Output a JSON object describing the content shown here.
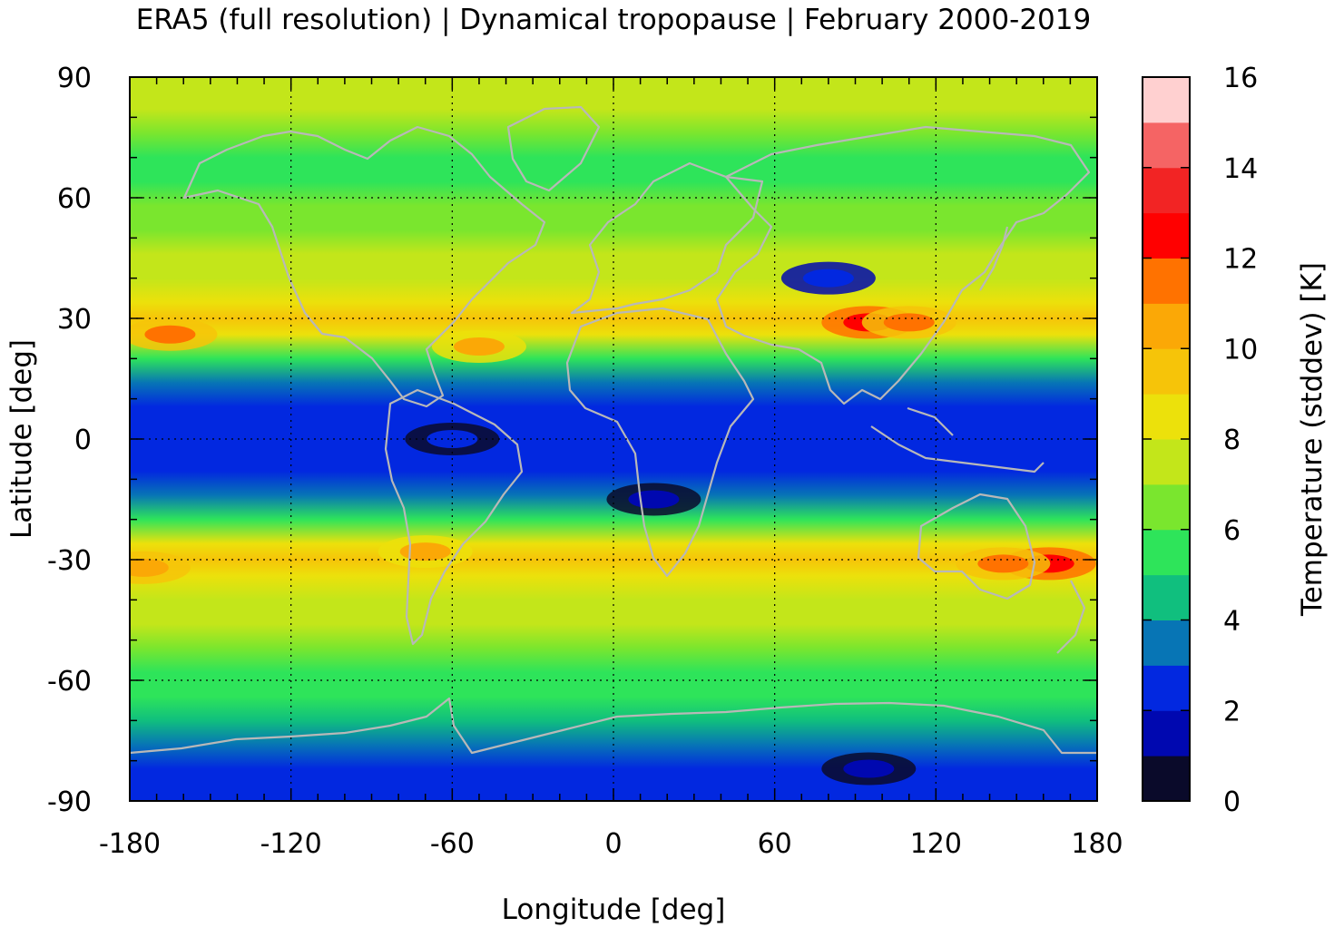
{
  "chart_data": {
    "type": "heatmap",
    "title": "ERA5 (full resolution) | Dynamical tropopause | February 2000-2019",
    "xlabel": "Longitude [deg]",
    "ylabel": "Latitude [deg]",
    "colorbar_label": "Temperature (stddev) [K]",
    "xlim": [
      -180,
      180
    ],
    "ylim": [
      -90,
      90
    ],
    "x_ticks": [
      -180,
      -120,
      -60,
      0,
      60,
      120,
      180
    ],
    "y_ticks": [
      -90,
      -60,
      -30,
      0,
      30,
      60,
      90
    ],
    "x_tick_labels": [
      "-180",
      "-120",
      "-60",
      "0",
      "60",
      "120",
      "180"
    ],
    "y_tick_labels": [
      "-90",
      "-60",
      "-30",
      "0",
      "30",
      "60",
      "90"
    ],
    "grid": true,
    "colorbar": {
      "range": [
        0,
        16
      ],
      "ticks": [
        0,
        2,
        4,
        6,
        8,
        10,
        12,
        14,
        16
      ],
      "tick_labels": [
        "0",
        "2",
        "4",
        "6",
        "8",
        "10",
        "12",
        "14",
        "16"
      ],
      "levels": [
        {
          "min": 0,
          "max": 1,
          "color": "#0a0a2a"
        },
        {
          "min": 1,
          "max": 2,
          "color": "#0008b0"
        },
        {
          "min": 2,
          "max": 3,
          "color": "#0228e0"
        },
        {
          "min": 3,
          "max": 4,
          "color": "#0775b5"
        },
        {
          "min": 4,
          "max": 5,
          "color": "#10bf7e"
        },
        {
          "min": 5,
          "max": 6,
          "color": "#2ee45a"
        },
        {
          "min": 6,
          "max": 7,
          "color": "#7ae62e"
        },
        {
          "min": 7,
          "max": 8,
          "color": "#c3e61a"
        },
        {
          "min": 8,
          "max": 9,
          "color": "#ece10b"
        },
        {
          "min": 9,
          "max": 10,
          "color": "#f6c409"
        },
        {
          "min": 10,
          "max": 11,
          "color": "#fba806"
        },
        {
          "min": 11,
          "max": 12,
          "color": "#ff7200"
        },
        {
          "min": 12,
          "max": 13,
          "color": "#ff0000"
        },
        {
          "min": 13,
          "max": 14,
          "color": "#f22424"
        },
        {
          "min": 14,
          "max": 15,
          "color": "#f56464"
        },
        {
          "min": 15,
          "max": 16,
          "color": "#ffd0d0"
        }
      ]
    },
    "zonal_mean_profile": {
      "lat": [
        -90,
        -82,
        -76,
        -70,
        -64,
        -58,
        -52,
        -46,
        -40,
        -34,
        -30,
        -26,
        -20,
        -14,
        -8,
        0,
        8,
        14,
        20,
        26,
        30,
        34,
        40,
        46,
        52,
        58,
        64,
        70,
        76,
        82,
        90
      ],
      "value": [
        2.5,
        2.8,
        3.5,
        4.4,
        5.3,
        5.8,
        6.4,
        7.2,
        7.6,
        8.5,
        9.3,
        8.0,
        5.5,
        3.2,
        2.5,
        2.5,
        2.5,
        3.0,
        5.6,
        8.4,
        9.2,
        8.6,
        7.7,
        7.0,
        6.4,
        6.0,
        5.6,
        5.8,
        6.8,
        7.2,
        7.0
      ]
    },
    "hotspots": [
      {
        "lon": 95,
        "lat": 29,
        "value": 12.5
      },
      {
        "lon": 110,
        "lat": 29,
        "value": 11.4
      },
      {
        "lon": -165,
        "lat": 26,
        "value": 11.2
      },
      {
        "lon": -50,
        "lat": 23,
        "value": 10.2
      },
      {
        "lon": 162,
        "lat": -31,
        "value": 12.5
      },
      {
        "lon": 145,
        "lat": -31,
        "value": 11.3
      },
      {
        "lon": -175,
        "lat": -32,
        "value": 10.6
      },
      {
        "lon": -70,
        "lat": -28,
        "value": 10.0
      },
      {
        "lon": 15,
        "lat": -15,
        "value": 1.5
      },
      {
        "lon": 80,
        "lat": 40,
        "value": 2.8
      },
      {
        "lon": 95,
        "lat": -82,
        "value": 1.6
      },
      {
        "lon": -60,
        "lat": 0,
        "value": 2.0
      }
    ],
    "overlay": "coastlines",
    "coastline_color": "#b8b8b8"
  }
}
